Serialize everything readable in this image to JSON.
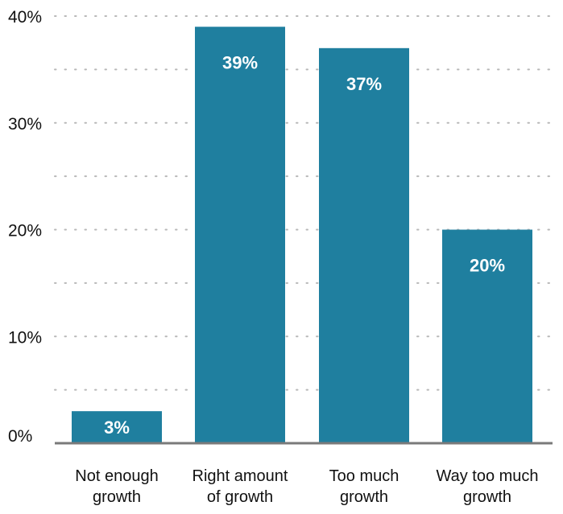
{
  "chart_data": {
    "type": "bar",
    "title": "",
    "xlabel": "",
    "ylabel": "",
    "categories": [
      [
        "Not enough",
        "growth"
      ],
      [
        "Right amount",
        "of growth"
      ],
      [
        "Too much",
        "growth"
      ],
      [
        "Way too much",
        "growth"
      ]
    ],
    "values": [
      3,
      39,
      37,
      20
    ],
    "value_labels": [
      "3%",
      "39%",
      "37%",
      "20%"
    ],
    "ylim": [
      0,
      40
    ],
    "y_ticks": [
      0,
      10,
      20,
      30,
      40
    ],
    "y_tick_labels": [
      "0%",
      "10%",
      "20%",
      "30%",
      "40%"
    ],
    "grid": true,
    "grid_style": "dotted",
    "colors": {
      "bar": "#1f7f9f",
      "bar_label": "#ffffff",
      "axis": "#7a7a7a",
      "grid": "#b8b8b8",
      "text": "#111111"
    }
  }
}
